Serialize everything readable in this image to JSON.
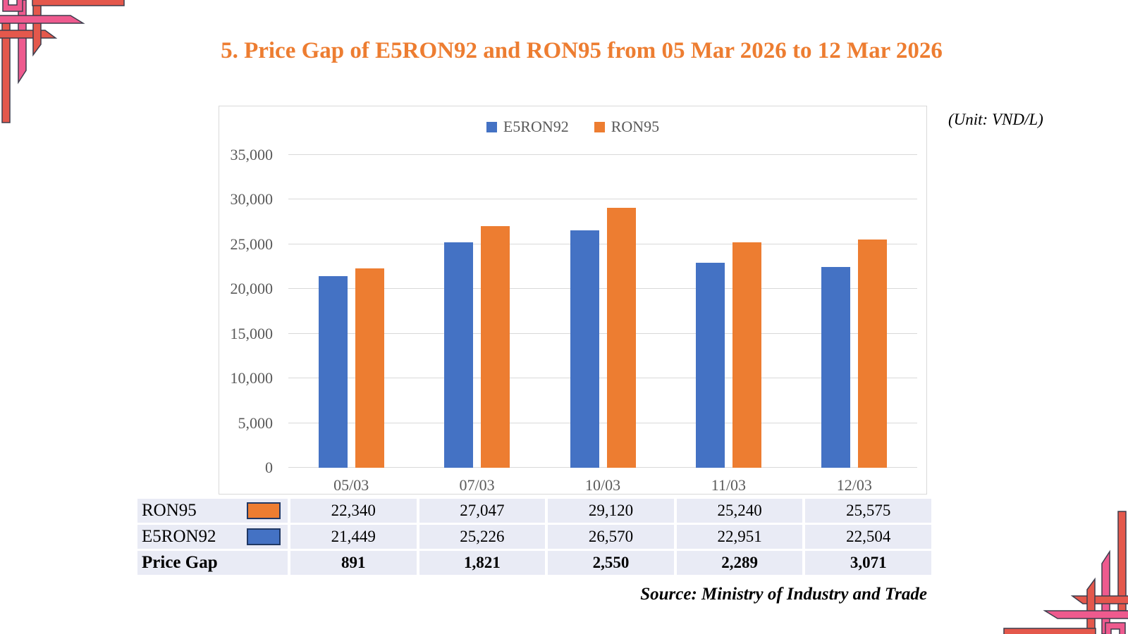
{
  "page": {
    "title": "5. Price Gap of E5RON92 and RON95 from 05 Mar 2026 to 12 Mar 2026",
    "unit_label": "(Unit: VND/L)",
    "source": "Source: Ministry of Industry and Trade"
  },
  "colors": {
    "title": "#ED7D31",
    "e5ron92": "#4472C4",
    "ron95": "#ED7D31",
    "grid": "#D9D9D9",
    "axis_text": "#595959",
    "table_bg": "#E9EBF5",
    "swatch_border": "#203864",
    "ornament_pink": "#EE5A8E",
    "ornament_coral": "#E4584C"
  },
  "chart_data": {
    "type": "bar",
    "title": "5. Price Gap of E5RON92 and RON95 from 05 Mar 2026 to 12 Mar 2026",
    "categories": [
      "05/03",
      "07/03",
      "10/03",
      "11/03",
      "12/03"
    ],
    "series": [
      {
        "name": "E5RON92",
        "color": "#4472C4",
        "values": [
          21449,
          25226,
          26570,
          22951,
          22504
        ]
      },
      {
        "name": "RON95",
        "color": "#ED7D31",
        "values": [
          22340,
          27047,
          29120,
          25240,
          25575
        ]
      }
    ],
    "xlabel": "",
    "ylabel": "",
    "unit": "VND/L",
    "ylim": [
      0,
      35000
    ],
    "y_ticks": [
      0,
      5000,
      10000,
      15000,
      20000,
      25000,
      30000,
      35000
    ],
    "y_tick_labels": [
      "0",
      "5,000",
      "10,000",
      "15,000",
      "20,000",
      "25,000",
      "30,000",
      "35,000"
    ],
    "grid": true,
    "legend_position": "top-center"
  },
  "table": {
    "rows": [
      {
        "label": "RON95",
        "swatch": "#ED7D31",
        "bold": false,
        "values": [
          "22,340",
          "27,047",
          "29,120",
          "25,240",
          "25,575"
        ]
      },
      {
        "label": "E5RON92",
        "swatch": "#4472C4",
        "bold": false,
        "values": [
          "21,449",
          "25,226",
          "26,570",
          "22,951",
          "22,504"
        ]
      },
      {
        "label": "Price Gap",
        "swatch": null,
        "bold": true,
        "values": [
          "891",
          "1,821",
          "2,550",
          "2,289",
          "3,071"
        ]
      }
    ]
  }
}
